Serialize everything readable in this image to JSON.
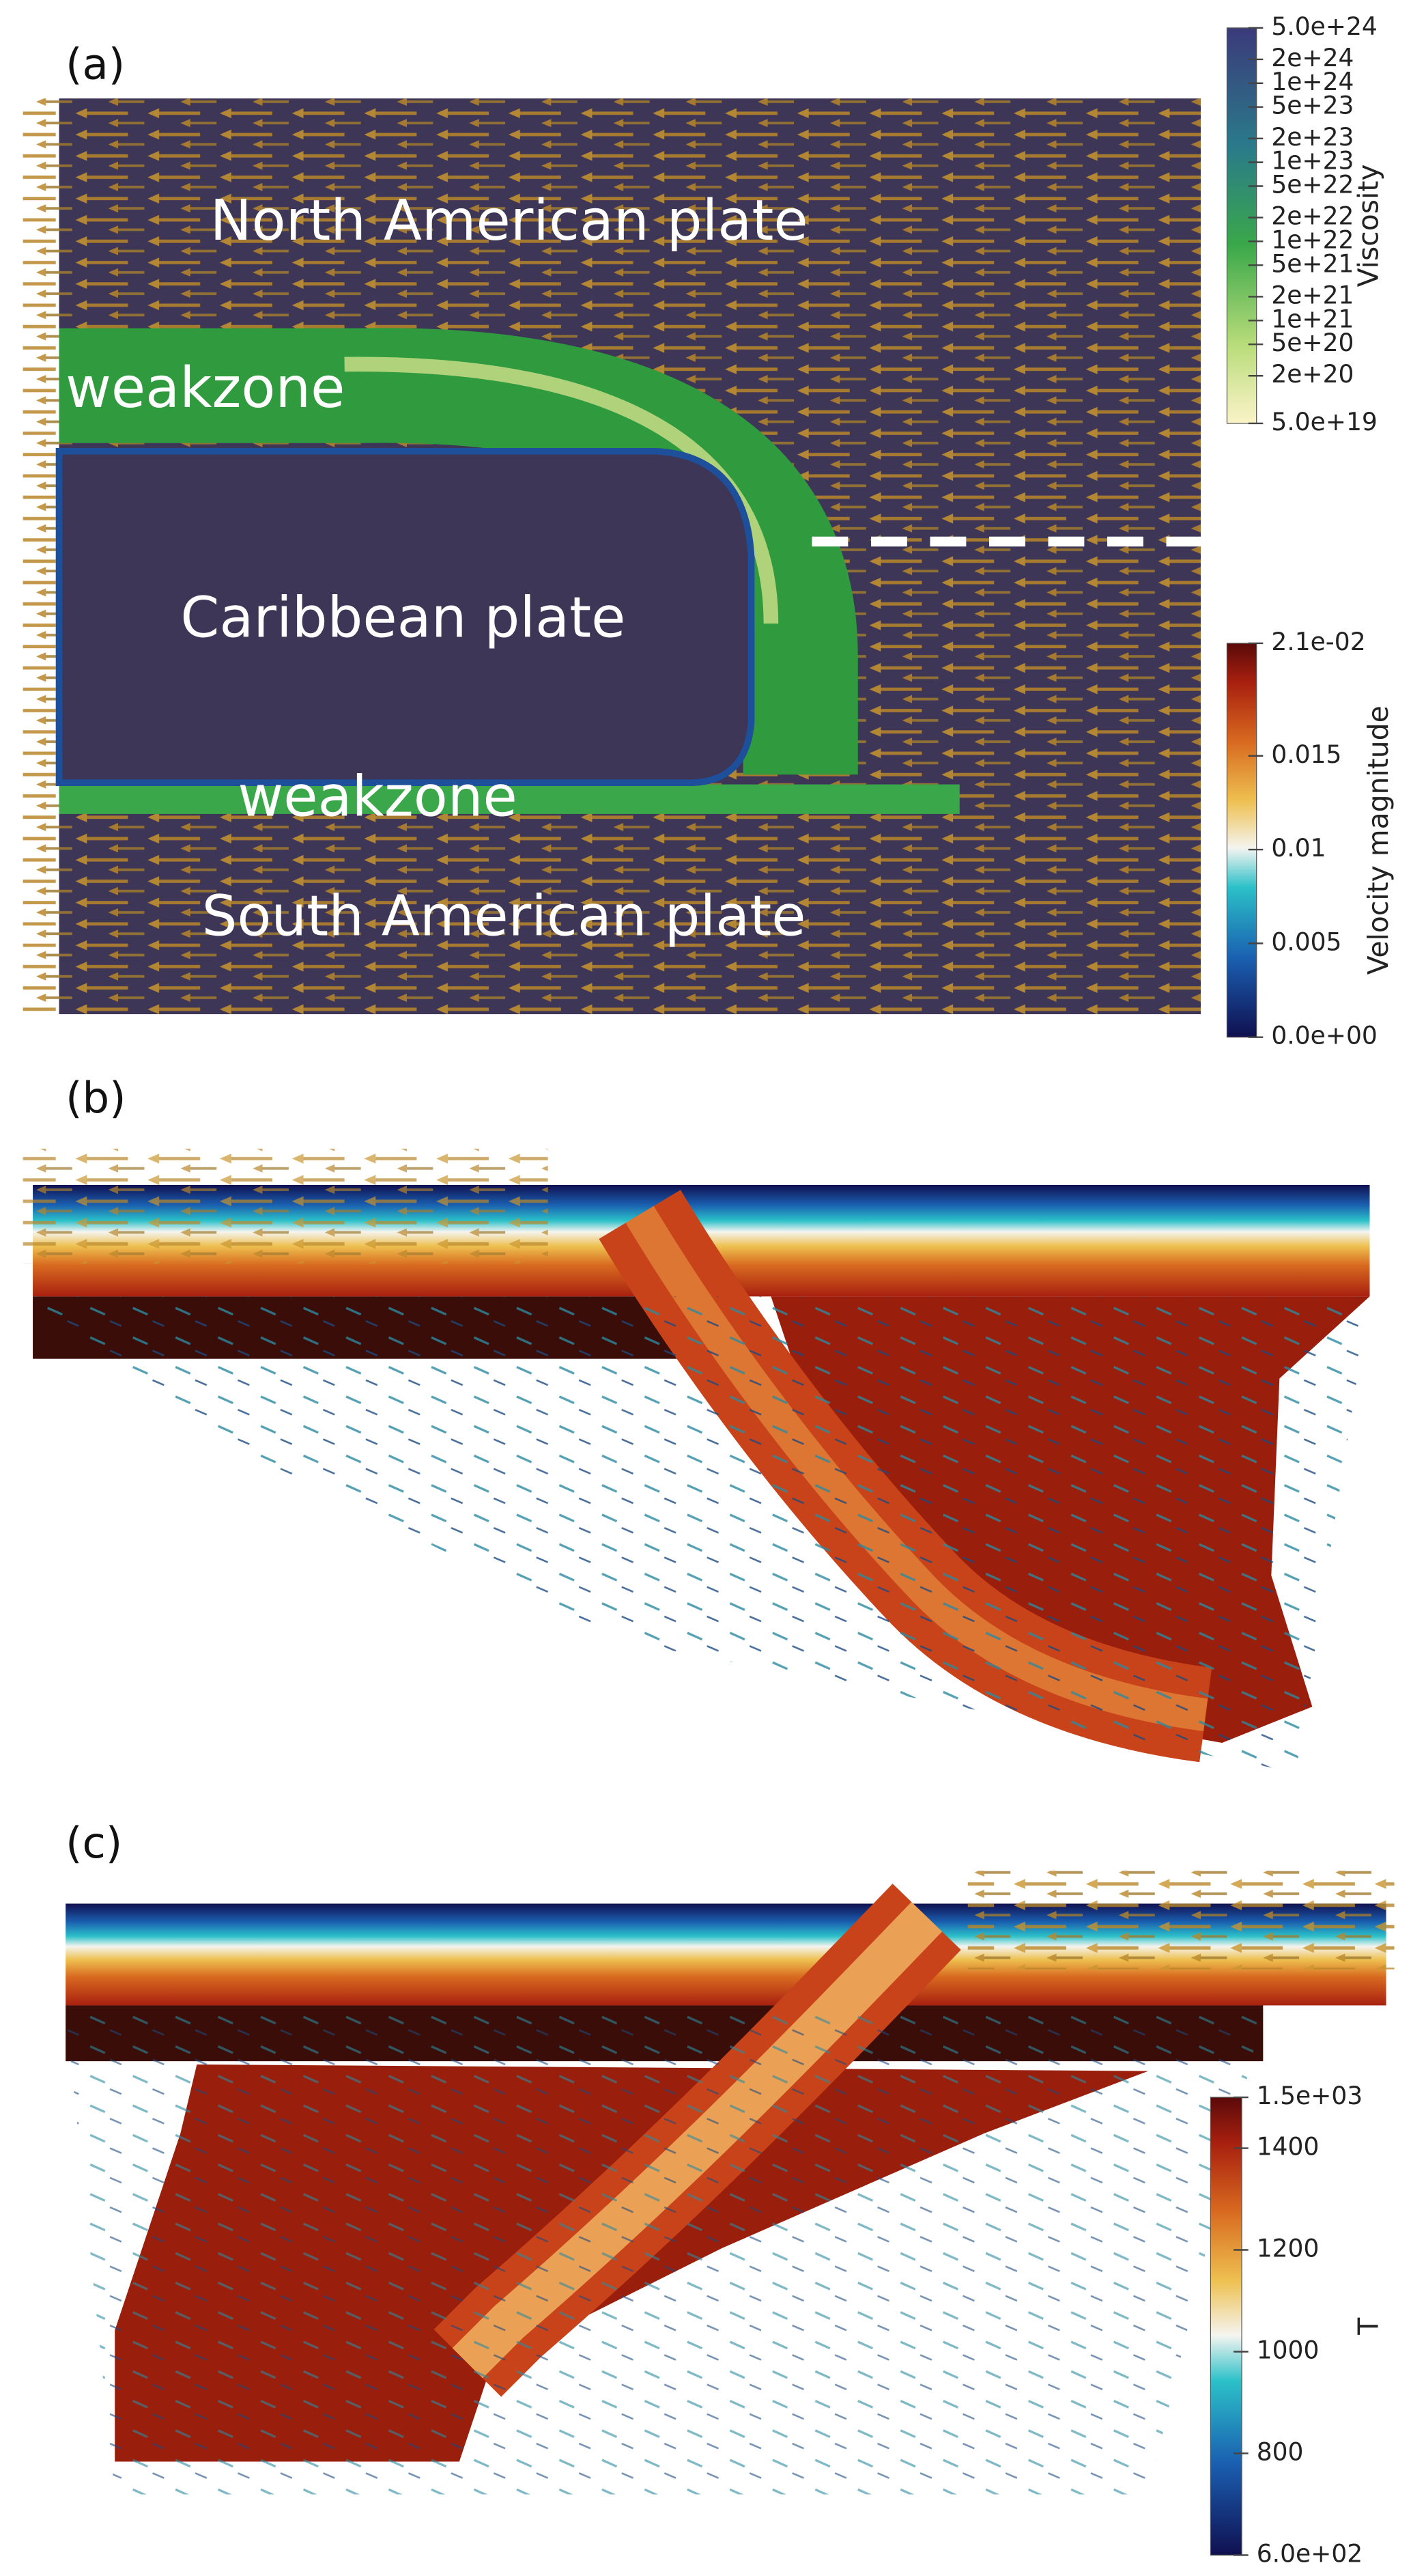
{
  "panels": [
    {
      "label": "(a)",
      "annotations": [
        "North American plate",
        "weakzone",
        "Caribbean plate",
        "weakzone",
        "South American plate"
      ]
    },
    {
      "label": "(b)"
    },
    {
      "label": "(c)"
    }
  ],
  "colorbars": [
    {
      "title": "Viscosity",
      "scale": "log",
      "lim": [
        5e+19,
        5e+24
      ],
      "ticks": [
        {
          "value": 5e+24,
          "label": "5.0e+24"
        },
        {
          "value": 2e+24,
          "label": "2e+24"
        },
        {
          "value": 1e+24,
          "label": "1e+24"
        },
        {
          "value": 5e+23,
          "label": "5e+23"
        },
        {
          "value": 2e+23,
          "label": "2e+23"
        },
        {
          "value": 1e+23,
          "label": "1e+23"
        },
        {
          "value": 5e+22,
          "label": "5e+22"
        },
        {
          "value": 2e+22,
          "label": "2e+22"
        },
        {
          "value": 1e+22,
          "label": "1e+22"
        },
        {
          "value": 5e+21,
          "label": "5e+21"
        },
        {
          "value": 2e+21,
          "label": "2e+21"
        },
        {
          "value": 1e+21,
          "label": "1e+21"
        },
        {
          "value": 5e+20,
          "label": "5e+20"
        },
        {
          "value": 2e+20,
          "label": "2e+20"
        },
        {
          "value": 5e+19,
          "label": "5.0e+19"
        }
      ]
    },
    {
      "title": "Velocity magnitude",
      "scale": "linear",
      "lim": [
        0,
        0.021
      ],
      "ticks": [
        {
          "value": 0.021,
          "label": "2.1e-02"
        },
        0.015,
        0.01,
        0.005,
        {
          "value": 0,
          "label": "0.0e+00"
        }
      ]
    },
    {
      "title": "T",
      "scale": "linear",
      "lim": [
        600,
        1500
      ],
      "ticks": [
        {
          "value": 1500,
          "label": "1.5e+03"
        },
        1400,
        1200,
        1000,
        800,
        {
          "value": 600,
          "label": "6.0e+02"
        }
      ]
    }
  ]
}
